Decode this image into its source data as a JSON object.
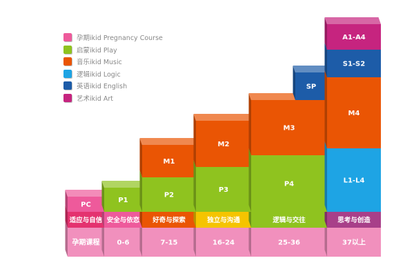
{
  "legend": [
    {
      "label": "孕期ikid Pregnancy Course",
      "color": "#ee5a9b",
      "icon": "pink-square-icon"
    },
    {
      "label": "启蒙ikid Play",
      "color": "#8fc31f",
      "icon": "green-square-icon"
    },
    {
      "label": "音乐ikid Music",
      "color": "#ea5504",
      "icon": "orange-square-icon"
    },
    {
      "label": "逻辑ikid Logic",
      "color": "#1ea4e4",
      "icon": "blue-square-icon"
    },
    {
      "label": "英语ikid English",
      "color": "#1d5ca8",
      "icon": "navy-square-icon"
    },
    {
      "label": "艺术ikid Art",
      "color": "#c6247f",
      "icon": "magenta-square-icon"
    }
  ],
  "age_bands": [
    "孕期课程",
    "0-6",
    "7-15",
    "16-24",
    "25-36",
    "37以上"
  ],
  "themes": [
    "适应与自信",
    "安全与依恋",
    "好奇与探索",
    "独立与沟通",
    "逻辑与交往",
    "思考与创造"
  ],
  "courses": {
    "PC": "PC",
    "P1": "P1",
    "P2": "P2",
    "P3": "P3",
    "P4": "P4",
    "M1": "M1",
    "M2": "M2",
    "M3": "M3",
    "M4": "M4",
    "SP": "SP",
    "L1L4": "L1-L4",
    "S1S2": "S1-S2",
    "A1A4": "A1-A4"
  }
}
